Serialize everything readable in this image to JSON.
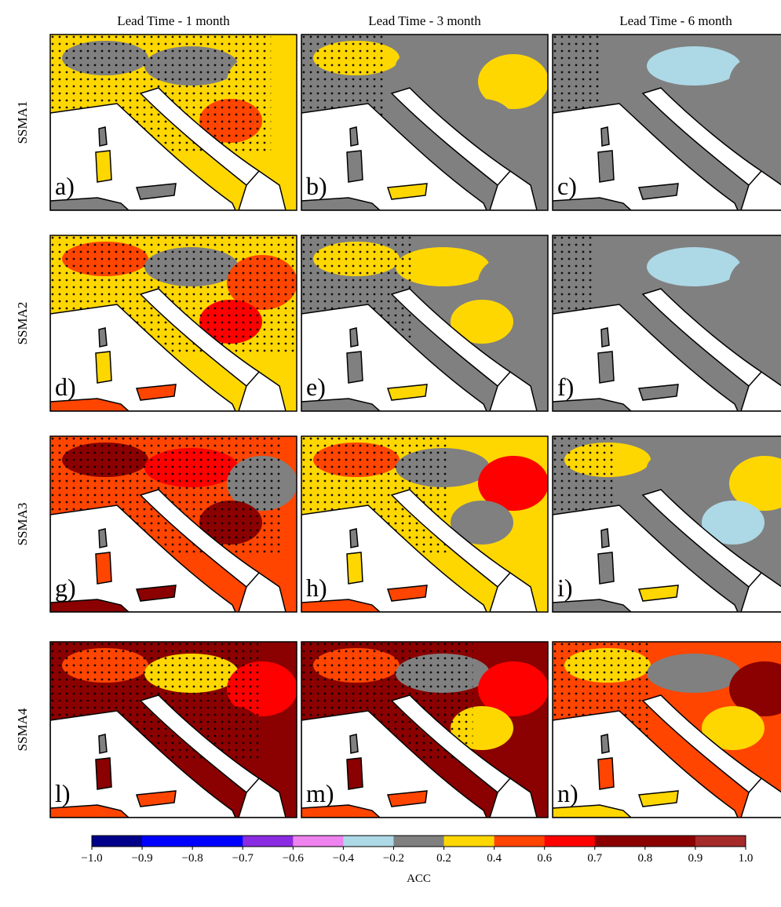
{
  "column_titles": [
    "Lead Time - 1 month",
    "Lead Time - 3 month",
    "Lead Time - 6 month"
  ],
  "row_labels": [
    "SSMA1",
    "SSMA2",
    "SSMA3",
    "SSMA4"
  ],
  "panel_labels": [
    [
      "a)",
      "b)",
      "c)"
    ],
    [
      "d)",
      "e)",
      "f)"
    ],
    [
      "g)",
      "h)",
      "i)"
    ],
    [
      "l)",
      "m)",
      "n)"
    ]
  ],
  "colorbar": {
    "label": "ACC",
    "ticks": [
      {
        "value": -1.0,
        "label": "−1.0"
      },
      {
        "value": -0.9,
        "label": "−0.9"
      },
      {
        "value": -0.8,
        "label": "−0.8"
      },
      {
        "value": -0.7,
        "label": "−0.7"
      },
      {
        "value": -0.6,
        "label": "−0.6"
      },
      {
        "value": -0.4,
        "label": "−0.4"
      },
      {
        "value": -0.2,
        "label": "−0.2"
      },
      0.2,
      0.4,
      0.6,
      0.7,
      0.8,
      0.9,
      {
        "value": 1.0,
        "label": "1.0"
      }
    ],
    "colors": [
      "#00008b",
      "#0000ff",
      "#0000ff",
      "#8a2be2",
      "#ee82ee",
      "#add8e6",
      "#808080",
      "#ffd700",
      "#ff4500",
      "#ff0000",
      "#8b0000",
      "#8b0000",
      "#a52a2a"
    ]
  }
}
